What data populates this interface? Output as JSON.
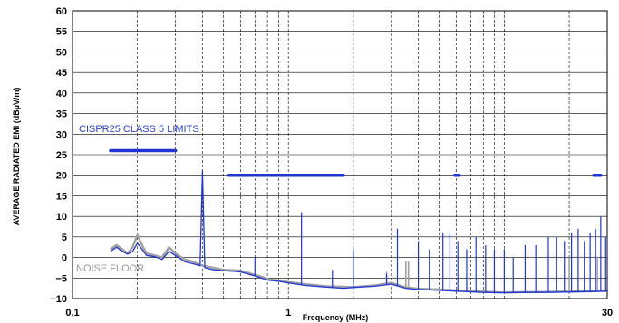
{
  "chart_data": {
    "type": "line",
    "xlabel": "Frequency (MHz)",
    "ylabel": "AVERAGE RADIATED EMI (dBµV/m)",
    "x_scale": "log",
    "xlim": [
      0.1,
      30
    ],
    "ylim": [
      -10,
      60
    ],
    "x_tick_labels": [
      "0.1",
      "1",
      "30"
    ],
    "y_ticks": [
      "−10",
      "−5",
      "0",
      "5",
      "10",
      "15",
      "20",
      "25",
      "30",
      "35",
      "40",
      "45",
      "50",
      "55",
      "60"
    ],
    "grid": "horizontal major lines solid; vertical decade gridlines dashed",
    "annotations": [
      {
        "text": "CISPR25 CLASS 5 LIMITS",
        "color": "#2b3fd6"
      },
      {
        "text": "NOISE FLOOR",
        "color": "#9a9a9a"
      }
    ],
    "limit_segments": [
      {
        "x": [
          0.15,
          0.3
        ],
        "y": 26
      },
      {
        "x": [
          0.53,
          1.8
        ],
        "y": 20
      },
      {
        "x": [
          5.9,
          6.2
        ],
        "y": 20
      },
      {
        "x": [
          26,
          28
        ],
        "y": 20
      }
    ],
    "series": [
      {
        "color": "#1f35d6",
        "points": [
          [
            0.15,
            1.5
          ],
          [
            0.16,
            2.5
          ],
          [
            0.17,
            1.5
          ],
          [
            0.18,
            0.8
          ],
          [
            0.19,
            1.5
          ],
          [
            0.2,
            3.5
          ],
          [
            0.21,
            2
          ],
          [
            0.22,
            0.5
          ],
          [
            0.24,
            0.2
          ],
          [
            0.26,
            -0.5
          ],
          [
            0.28,
            1.5
          ],
          [
            0.3,
            0.5
          ],
          [
            0.33,
            -1
          ],
          [
            0.36,
            -1.5
          ],
          [
            0.39,
            -2
          ],
          [
            0.4,
            21
          ],
          [
            0.41,
            -2.5
          ],
          [
            0.45,
            -3
          ],
          [
            0.5,
            -3.2
          ],
          [
            0.6,
            -3.5
          ],
          [
            0.7,
            -4.5
          ],
          [
            0.8,
            -5.5
          ],
          [
            0.9,
            -5.8
          ],
          [
            1,
            -6.2
          ],
          [
            1.2,
            -6.8
          ],
          [
            1.5,
            -7.2
          ],
          [
            1.8,
            -7.5
          ],
          [
            2,
            -7.3
          ],
          [
            2.5,
            -7
          ],
          [
            3,
            -6.5
          ],
          [
            3.5,
            -7.5
          ],
          [
            4,
            -7.8
          ],
          [
            5,
            -8
          ],
          [
            6,
            -8.2
          ],
          [
            8,
            -8.5
          ],
          [
            10,
            -8.6
          ],
          [
            12,
            -8.5
          ],
          [
            15,
            -8.5
          ],
          [
            20,
            -8.4
          ],
          [
            25,
            -8.3
          ],
          [
            30,
            -8.2
          ]
        ],
        "spikes": [
          [
            0.4,
            21
          ],
          [
            0.7,
            0
          ],
          [
            1.15,
            11
          ],
          [
            1.6,
            -3
          ],
          [
            2,
            2
          ],
          [
            2.85,
            -4
          ],
          [
            3.2,
            7
          ],
          [
            4,
            4
          ],
          [
            4.5,
            2
          ],
          [
            5.2,
            6
          ],
          [
            5.6,
            6
          ],
          [
            6.1,
            4
          ],
          [
            6.7,
            2
          ],
          [
            7.4,
            5
          ],
          [
            8.2,
            3
          ],
          [
            9,
            2
          ],
          [
            10,
            2
          ],
          [
            11,
            0
          ],
          [
            12.5,
            3
          ],
          [
            14,
            3
          ],
          [
            16,
            5
          ],
          [
            17.5,
            5
          ],
          [
            19,
            4
          ],
          [
            20.5,
            6
          ],
          [
            22,
            7
          ],
          [
            23.5,
            4
          ],
          [
            25,
            6
          ],
          [
            26.5,
            7
          ],
          [
            28,
            10
          ],
          [
            29.5,
            5
          ]
        ]
      },
      {
        "name": "NOISE FLOOR",
        "color": "#a0a0a0",
        "points": [
          [
            0.15,
            2
          ],
          [
            0.16,
            3
          ],
          [
            0.17,
            2
          ],
          [
            0.18,
            1
          ],
          [
            0.19,
            2.5
          ],
          [
            0.2,
            5.5
          ],
          [
            0.21,
            3
          ],
          [
            0.22,
            1
          ],
          [
            0.24,
            0.5
          ],
          [
            0.26,
            0
          ],
          [
            0.28,
            2.5
          ],
          [
            0.3,
            1
          ],
          [
            0.33,
            -0.5
          ],
          [
            0.36,
            -1
          ],
          [
            0.4,
            -2
          ],
          [
            0.45,
            -2.5
          ],
          [
            0.5,
            -3
          ],
          [
            0.6,
            -3.2
          ],
          [
            0.7,
            -4.2
          ],
          [
            0.8,
            -5.2
          ],
          [
            1,
            -6
          ],
          [
            1.2,
            -6.5
          ],
          [
            1.5,
            -7
          ],
          [
            2,
            -7.2
          ],
          [
            2.5,
            -6.8
          ],
          [
            3,
            -6.2
          ],
          [
            3.5,
            -7.3
          ],
          [
            4,
            -7.6
          ],
          [
            5,
            -7.8
          ],
          [
            6,
            -8
          ],
          [
            8,
            -8.3
          ],
          [
            10,
            -8.5
          ],
          [
            15,
            -8.4
          ],
          [
            20,
            -8.3
          ],
          [
            25,
            -8.2
          ],
          [
            30,
            -8
          ]
        ],
        "spikes": [
          [
            2.85,
            -3.5
          ],
          [
            3.5,
            -1
          ],
          [
            3.6,
            -1
          ],
          [
            20,
            0
          ],
          [
            27,
            0
          ]
        ]
      }
    ]
  }
}
